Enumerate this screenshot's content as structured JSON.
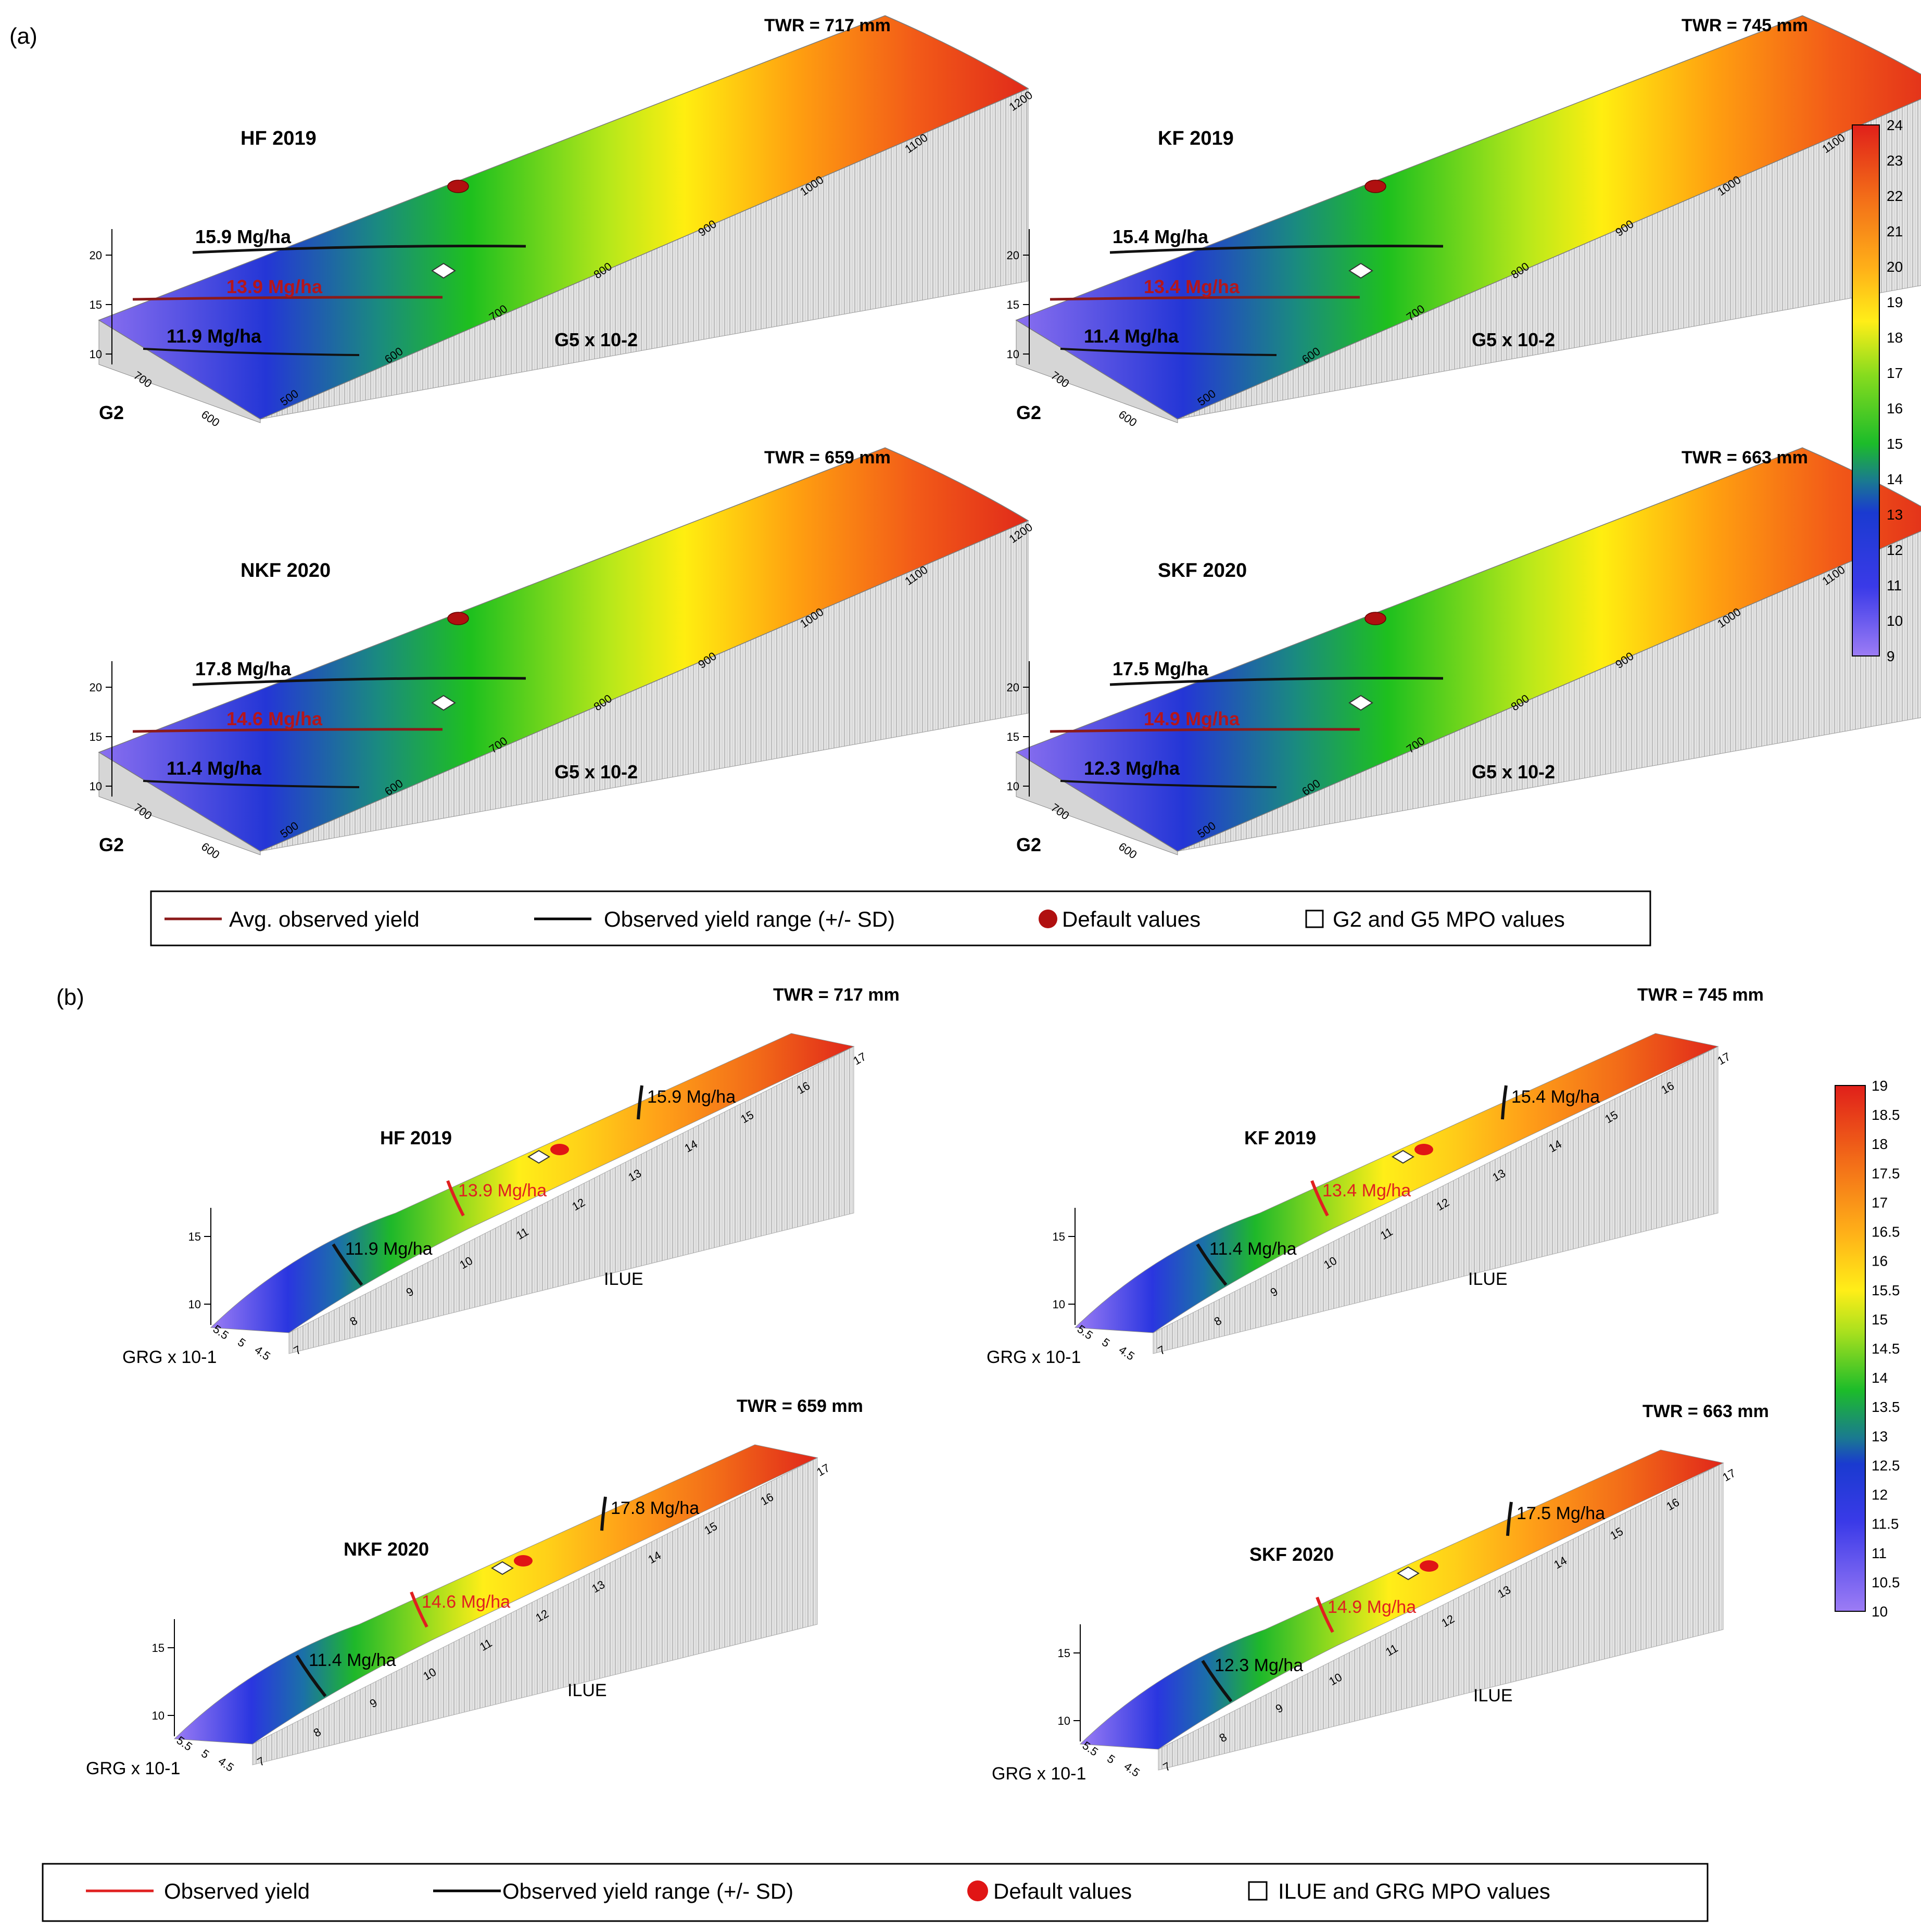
{
  "figure": {
    "panel_a_label": "(a)",
    "panel_b_label": "(b)"
  },
  "chart_data": [
    {
      "type": "surface",
      "panel": "a",
      "xlabel": "G5 x 10-2",
      "ylabel": "G2",
      "x_ticks": [
        "500",
        "600",
        "700",
        "800",
        "900",
        "1000",
        "1100",
        "1200"
      ],
      "y_ticks": [
        "600",
        "700"
      ],
      "z_ticks": [
        "10",
        "15",
        "20"
      ],
      "colorbar": {
        "min": 9,
        "max": 24,
        "ticks": [
          "9",
          "10",
          "11",
          "12",
          "13",
          "14",
          "15",
          "16",
          "17",
          "18",
          "19",
          "20",
          "21",
          "22",
          "23",
          "24"
        ]
      },
      "subplots": [
        {
          "title": "HF 2019",
          "twr": "TWR = 717 mm",
          "upper": "15.9 Mg/ha",
          "avg": "13.9 Mg/ha",
          "lower": "11.9 Mg/ha"
        },
        {
          "title": "KF 2019",
          "twr": "TWR = 745 mm",
          "upper": "15.4 Mg/ha",
          "avg": "13.4 Mg/ha",
          "lower": "11.4 Mg/ha"
        },
        {
          "title": "NKF 2020",
          "twr": "TWR = 659 mm",
          "upper": "17.8 Mg/ha",
          "avg": "14.6 Mg/ha",
          "lower": "11.4 Mg/ha"
        },
        {
          "title": "SKF 2020",
          "twr": "TWR = 663 mm",
          "upper": "17.5 Mg/ha",
          "avg": "14.9 Mg/ha",
          "lower": "12.3 Mg/ha"
        }
      ],
      "legend": [
        {
          "label": "Avg. observed yield",
          "color": "#8b1a1a",
          "kind": "line"
        },
        {
          "label": "Observed yield range (+/- SD)",
          "color": "#000000",
          "kind": "line"
        },
        {
          "label": "Default values",
          "color": "#b01010",
          "kind": "dot"
        },
        {
          "label": "G2 and G5 MPO values",
          "color": "#ffffff",
          "kind": "square"
        }
      ]
    },
    {
      "type": "surface",
      "panel": "b",
      "xlabel": "ILUE",
      "ylabel": "GRG x 10-1",
      "x_ticks": [
        "7",
        "8",
        "9",
        "10",
        "11",
        "12",
        "13",
        "14",
        "15",
        "16",
        "17"
      ],
      "y_ticks": [
        "4.5",
        "5",
        "5.5"
      ],
      "z_ticks": [
        "10",
        "15"
      ],
      "colorbar": {
        "min": 10,
        "max": 19,
        "ticks": [
          "10",
          "10.5",
          "11",
          "11.5",
          "12",
          "12.5",
          "13",
          "13.5",
          "14",
          "14.5",
          "15",
          "15.5",
          "16",
          "16.5",
          "17",
          "17.5",
          "18",
          "18.5",
          "19"
        ]
      },
      "subplots": [
        {
          "title": "HF 2019",
          "twr": "TWR = 717 mm",
          "upper": "15.9 Mg/ha",
          "avg": "13.9 Mg/ha",
          "lower": "11.9 Mg/ha"
        },
        {
          "title": "KF 2019",
          "twr": "TWR = 745 mm",
          "upper": "15.4 Mg/ha",
          "avg": "13.4 Mg/ha",
          "lower": "11.4 Mg/ha"
        },
        {
          "title": "NKF 2020",
          "twr": "TWR = 659 mm",
          "upper": "17.8 Mg/ha",
          "avg": "14.6 Mg/ha",
          "lower": "11.4 Mg/ha"
        },
        {
          "title": "SKF 2020",
          "twr": "TWR = 663 mm",
          "upper": "17.5 Mg/ha",
          "avg": "14.9 Mg/ha",
          "lower": "12.3 Mg/ha"
        }
      ],
      "legend": [
        {
          "label": "Observed yield",
          "color": "#e02020",
          "kind": "line"
        },
        {
          "label": "Observed yield range (+/- SD)",
          "color": "#000000",
          "kind": "line"
        },
        {
          "label": "Default values",
          "color": "#e01515",
          "kind": "dot"
        },
        {
          "label": "ILUE and GRG MPO values",
          "color": "#ffffff",
          "kind": "square"
        }
      ]
    }
  ]
}
